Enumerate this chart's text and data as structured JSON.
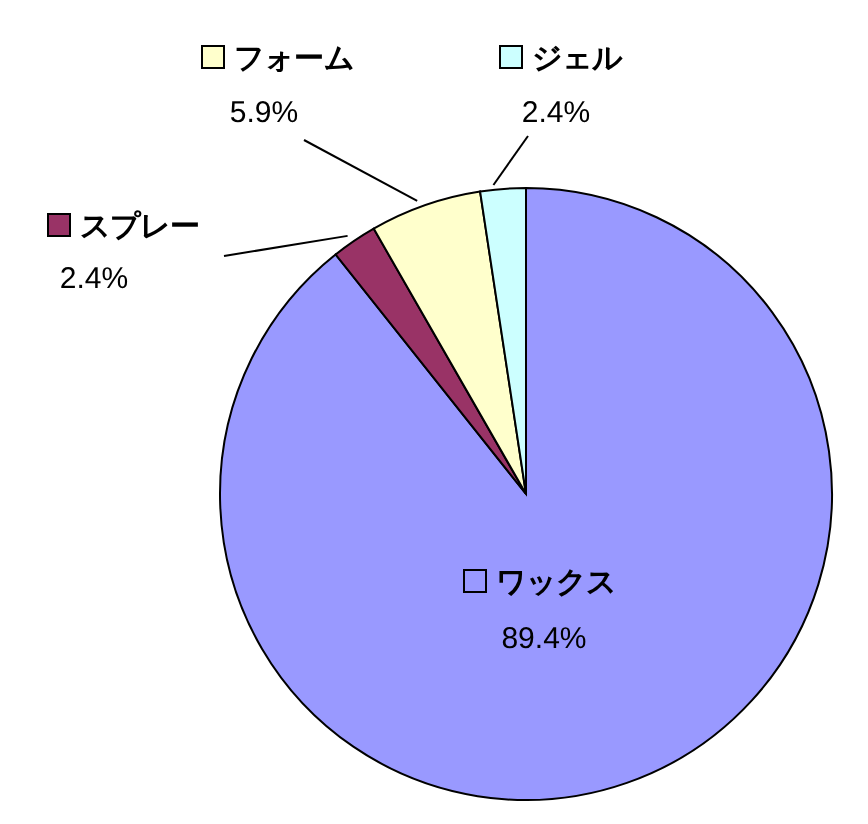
{
  "chart_data": {
    "type": "pie",
    "categories": [
      "ワックス",
      "スプレー",
      "フォーム",
      "ジェル"
    ],
    "values": [
      89.4,
      2.4,
      5.9,
      2.4
    ],
    "value_labels": [
      "89.4%",
      "2.4%",
      "5.9%",
      "2.4%"
    ],
    "colors": [
      "#9999ff",
      "#993366",
      "#ffffcc",
      "#ccffff"
    ],
    "legend": "top"
  }
}
